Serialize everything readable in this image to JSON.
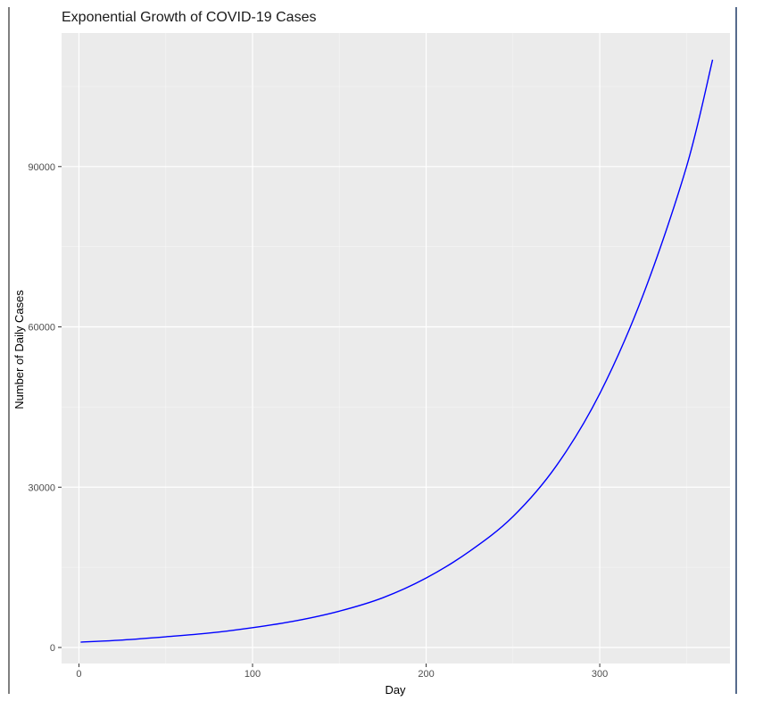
{
  "chart_data": {
    "type": "line",
    "title": "Exponential Growth of COVID-19 Cases",
    "xlabel": "Day",
    "ylabel": "Number of Daily Cases",
    "xlim": [
      -10,
      375
    ],
    "ylim": [
      -3000,
      115000
    ],
    "x_ticks": [
      0,
      100,
      200,
      300
    ],
    "x_tick_labels": [
      "0",
      "100",
      "200",
      "300"
    ],
    "y_ticks": [
      0,
      30000,
      60000,
      90000
    ],
    "y_tick_labels": [
      "0",
      "30000",
      "60000",
      "90000"
    ],
    "x_minor_ticks": [
      50,
      150,
      250,
      350
    ],
    "y_minor_ticks": [
      15000,
      45000,
      75000,
      105000
    ],
    "grid": true,
    "legend": "none",
    "series": [
      {
        "color": "#0000ff",
        "x": [
          1,
          25,
          50,
          75,
          100,
          125,
          150,
          175,
          200,
          225,
          250,
          275,
          300,
          325,
          350,
          365
        ],
        "y": [
          1000,
          1400,
          2000,
          2700,
          3700,
          5000,
          6800,
          9300,
          13000,
          18000,
          24500,
          34000,
          47500,
          66000,
          90000,
          110000
        ]
      }
    ],
    "colors": {
      "panel_background": "#ebebeb",
      "grid_major": "#ffffff",
      "grid_minor": "#f5f5f5",
      "line": "#0000ff",
      "tick": "#333333"
    }
  }
}
